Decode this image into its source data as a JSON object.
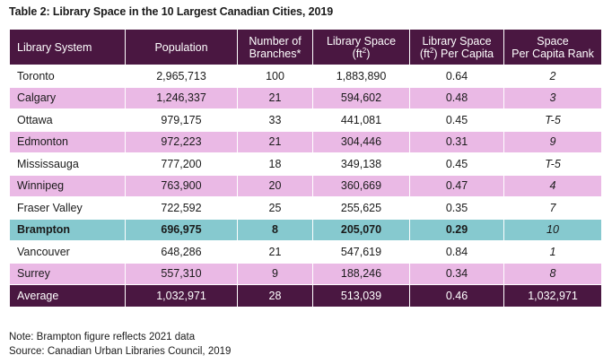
{
  "title": "Table 2: Library Space in the 10 Largest Canadian Cities, 2019",
  "headers": {
    "system": "Library System",
    "population": "Population",
    "branches": [
      "Number of",
      "Branches*"
    ],
    "space": [
      "Library Space",
      "(ft",
      "2",
      ")"
    ],
    "per_capita": [
      "Library Space",
      "(ft",
      "2",
      ") Per Capita"
    ],
    "rank": [
      "Space",
      "Per Capita Rank"
    ]
  },
  "rows": [
    {
      "system": "Toronto",
      "population": "2,965,713",
      "branches": "100",
      "space": "1,883,890",
      "per_capita": "0.64",
      "rank": "2",
      "style": "white"
    },
    {
      "system": "Calgary",
      "population": "1,246,337",
      "branches": "21",
      "space": "594,602",
      "per_capita": "0.48",
      "rank": "3",
      "style": "pink"
    },
    {
      "system": "Ottawa",
      "population": "979,175",
      "branches": "33",
      "space": "441,081",
      "per_capita": "0.45",
      "rank": "T-5",
      "style": "white"
    },
    {
      "system": "Edmonton",
      "population": "972,223",
      "branches": "21",
      "space": "304,446",
      "per_capita": "0.31",
      "rank": "9",
      "style": "pink"
    },
    {
      "system": "Mississauga",
      "population": "777,200",
      "branches": "18",
      "space": "349,138",
      "per_capita": "0.45",
      "rank": "T-5",
      "style": "white"
    },
    {
      "system": "Winnipeg",
      "population": "763,900",
      "branches": "20",
      "space": "360,669",
      "per_capita": "0.47",
      "rank": "4",
      "style": "pink"
    },
    {
      "system": "Fraser Valley",
      "population": "722,592",
      "branches": "25",
      "space": "255,625",
      "per_capita": "0.35",
      "rank": "7",
      "style": "white"
    },
    {
      "system": "Brampton",
      "population": "696,975",
      "branches": "8",
      "space": "205,070",
      "per_capita": "0.29",
      "rank": "10",
      "style": "teal"
    },
    {
      "system": "Vancouver",
      "population": "648,286",
      "branches": "21",
      "space": "547,619",
      "per_capita": "0.84",
      "rank": "1",
      "style": "white"
    },
    {
      "system": "Surrey",
      "population": "557,310",
      "branches": "9",
      "space": "188,246",
      "per_capita": "0.34",
      "rank": "8",
      "style": "pink"
    }
  ],
  "average": {
    "system": "Average",
    "population": "1,032,971",
    "branches": "28",
    "space": "513,039",
    "per_capita": "0.46",
    "rank": "1,032,971"
  },
  "notes": [
    "Note: Brampton figure reflects 2021 data",
    "Source: Canadian Urban Libraries Council, 2019"
  ],
  "colors": {
    "header": "#4a1741",
    "pink_row": "#eab9e5",
    "highlight_row": "#86c9cf"
  }
}
